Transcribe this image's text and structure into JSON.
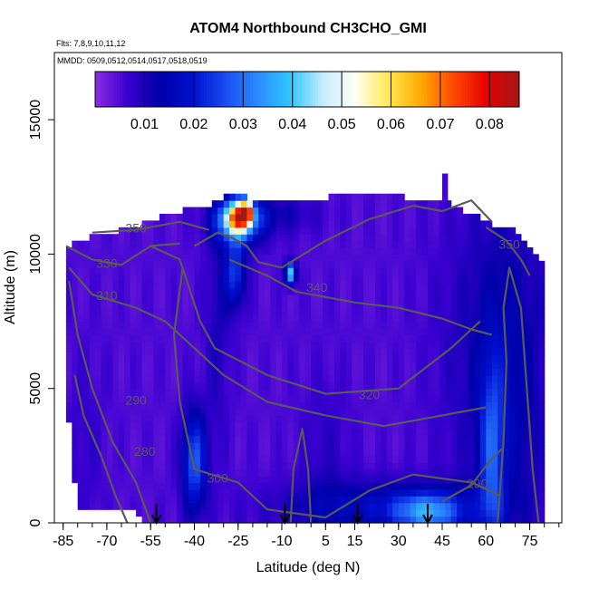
{
  "chart_data": {
    "type": "heatmap",
    "title": "ATOM4 Northbound CH3CHO_GMI",
    "subtitle_flights": "Flts: 7,8,9,10,11,12",
    "subtitle_dates": "MMDD: 0509,0512,0514,0517,0518,0519",
    "xlabel": "Latitude (deg N)",
    "ylabel": "Altitude (m)",
    "xlim": [
      -88,
      86
    ],
    "ylim": [
      0,
      17500
    ],
    "x_ticks": [
      -85,
      -70,
      -55,
      -40,
      -25,
      -10,
      5,
      15,
      30,
      45,
      60,
      75
    ],
    "x_tick_labels": [
      "-85",
      "-70",
      "-55",
      "-40",
      "-25",
      "-10",
      "5",
      "15",
      "30",
      "45",
      "60",
      "75"
    ],
    "y_ticks": [
      0,
      5000,
      10000,
      15000
    ],
    "y_tick_labels": [
      "0",
      "5000",
      "10000",
      "15000"
    ],
    "colorbar": {
      "ticks": [
        0.01,
        0.02,
        0.03,
        0.04,
        0.05,
        0.06,
        0.07,
        0.08
      ],
      "tick_labels": [
        "0.01",
        "0.02",
        "0.03",
        "0.04",
        "0.05",
        "0.06",
        "0.07",
        "0.08"
      ],
      "range": [
        0.0,
        0.086
      ],
      "colors": [
        "#8a2be2",
        "#3a00d0",
        "#0000a8",
        "#0010d0",
        "#1a4cf0",
        "#2a8cff",
        "#30c8ff",
        "#c8ecff",
        "#fffff2",
        "#ffe850",
        "#ffa800",
        "#ff4800",
        "#e60000",
        "#a01818"
      ]
    },
    "field": {
      "x_step": 2,
      "alt_step": 250,
      "background_value": 0.005,
      "blobs": [
        {
          "x": 60,
          "alt": 6500,
          "sx": 12,
          "salt": 4500,
          "v": 0.011
        },
        {
          "x": 70,
          "alt": 5000,
          "sx": 9,
          "salt": 4500,
          "v": 0.012
        },
        {
          "x": 25,
          "alt": 600,
          "sx": 25,
          "salt": 700,
          "v": 0.018
        },
        {
          "x": 40,
          "alt": 400,
          "sx": 8,
          "salt": 500,
          "v": 0.03
        },
        {
          "x": 62,
          "alt": 2500,
          "sx": 3,
          "salt": 2500,
          "v": 0.024
        },
        {
          "x": -40,
          "alt": 2300,
          "sx": 3,
          "salt": 1300,
          "v": 0.03
        },
        {
          "x": -32,
          "alt": 7500,
          "sx": 3,
          "salt": 3000,
          "v": 0.011
        },
        {
          "x": -25,
          "alt": 11200,
          "sx": 6,
          "salt": 600,
          "v": 0.035
        },
        {
          "x": -26,
          "alt": 9300,
          "sx": 2.5,
          "salt": 900,
          "v": 0.026
        },
        {
          "x": -25,
          "alt": 11400,
          "sx": 3,
          "salt": 400,
          "v": 0.058
        },
        {
          "x": -22,
          "alt": 11600,
          "sx": 1.5,
          "salt": 300,
          "v": 0.05
        },
        {
          "x": -12,
          "alt": 11500,
          "sx": 10,
          "salt": 500,
          "v": 0.012
        },
        {
          "x": -7,
          "alt": 9300,
          "sx": 1.2,
          "salt": 300,
          "v": 0.046
        },
        {
          "x": -78,
          "alt": 2800,
          "sx": 5,
          "salt": 2500,
          "v": 0.008
        },
        {
          "x": 5,
          "alt": 2500,
          "sx": 6,
          "salt": 2000,
          "v": 0.009
        }
      ]
    },
    "contours": [
      {
        "label": "280",
        "label_at": [
          -57,
          2500
        ],
        "points": [
          [
            -81,
            5500
          ],
          [
            -78,
            4000
          ],
          [
            -72,
            2500
          ],
          [
            -67,
            1000
          ],
          [
            -63,
            0
          ]
        ]
      },
      {
        "label": "290",
        "label_at": [
          -60,
          4400
        ],
        "points": [
          [
            -83,
            9000
          ],
          [
            -80,
            7000
          ],
          [
            -75,
            5000
          ],
          [
            -68,
            3000
          ],
          [
            -60,
            1500
          ],
          [
            -55,
            0
          ]
        ]
      },
      {
        "label": "300",
        "label_at": [
          -32,
          1500
        ],
        "points": [
          [
            -44,
            9500
          ],
          [
            -47,
            7000
          ],
          [
            -45,
            4500
          ],
          [
            -40,
            2000
          ],
          [
            -25,
            1500
          ],
          [
            -15,
            500
          ],
          [
            5,
            200
          ],
          [
            20,
            1200
          ],
          [
            35,
            1800
          ],
          [
            55,
            1500
          ],
          [
            65,
            1000
          ]
        ]
      },
      {
        "label": "290",
        "label_at": [
          57,
          1300
        ],
        "points": [
          [
            45,
            800
          ],
          [
            55,
            1400
          ],
          [
            62,
            2400
          ],
          [
            66,
            2800
          ]
        ]
      },
      {
        "label": "310",
        "label_at": [
          -70,
          8300
        ],
        "points": [
          [
            -83,
            9500
          ],
          [
            -75,
            8500
          ],
          [
            -60,
            8000
          ],
          [
            -50,
            7500
          ],
          [
            -40,
            6500
          ],
          [
            -30,
            5500
          ],
          [
            -15,
            4500
          ],
          [
            5,
            4000
          ],
          [
            25,
            3600
          ],
          [
            45,
            4000
          ],
          [
            60,
            4300
          ]
        ]
      },
      {
        "label": "320",
        "label_at": [
          20,
          4600
        ],
        "points": [
          [
            -55,
            10300
          ],
          [
            -45,
            9800
          ],
          [
            -38,
            7500
          ],
          [
            -33,
            6500
          ],
          [
            -15,
            5500
          ],
          [
            5,
            4800
          ],
          [
            30,
            5000
          ],
          [
            48,
            6500
          ],
          [
            58,
            7500
          ]
        ]
      },
      {
        "label": "330",
        "label_at": [
          -70,
          9500
        ],
        "points": [
          [
            -84,
            10300
          ],
          [
            -75,
            9800
          ],
          [
            -65,
            9600
          ],
          [
            -55,
            10300
          ],
          [
            -45,
            10400
          ]
        ]
      },
      {
        "label": "340",
        "label_at": [
          2,
          8600
        ],
        "points": [
          [
            -28,
            9800
          ],
          [
            -15,
            9200
          ],
          [
            -5,
            8600
          ],
          [
            15,
            8200
          ],
          [
            30,
            8000
          ],
          [
            45,
            7600
          ],
          [
            55,
            7200
          ],
          [
            62,
            7000
          ]
        ]
      },
      {
        "label": "350",
        "label_at": [
          -60,
          10800
        ],
        "points": [
          [
            -75,
            10800
          ],
          [
            -60,
            10900
          ],
          [
            -45,
            11200
          ],
          [
            -35,
            10900
          ]
        ]
      },
      {
        "label": "350",
        "label_at": [
          68,
          10200
        ],
        "points": [
          [
            60,
            11000
          ],
          [
            67,
            10500
          ],
          [
            72,
            9800
          ],
          [
            75,
            9200
          ]
        ]
      },
      {
        "label": "",
        "label_at": [
          0,
          0
        ],
        "points": [
          [
            -40,
            10300
          ],
          [
            -32,
            10800
          ],
          [
            -27,
            10600
          ],
          [
            -22,
            10300
          ],
          [
            -18,
            9700
          ],
          [
            -10,
            9500
          ],
          [
            5,
            10500
          ],
          [
            20,
            11300
          ],
          [
            35,
            11800
          ],
          [
            45,
            11600
          ],
          [
            55,
            12000
          ],
          [
            62,
            11200
          ]
        ]
      },
      {
        "label": "",
        "label_at": [
          0,
          0
        ],
        "points": [
          [
            64,
            0
          ],
          [
            66,
            3000
          ],
          [
            67,
            6000
          ],
          [
            66,
            8000
          ],
          [
            68,
            9500
          ],
          [
            72,
            8000
          ],
          [
            74,
            5000
          ],
          [
            76,
            2000
          ],
          [
            78,
            0
          ]
        ]
      },
      {
        "label": "",
        "label_at": [
          0,
          0
        ],
        "points": [
          [
            -7,
            0
          ],
          [
            -6,
            2000
          ],
          [
            -3,
            3500
          ],
          [
            -1,
            2000
          ],
          [
            0,
            0
          ]
        ]
      }
    ],
    "arrows": [
      -53,
      -9,
      16,
      40
    ]
  }
}
